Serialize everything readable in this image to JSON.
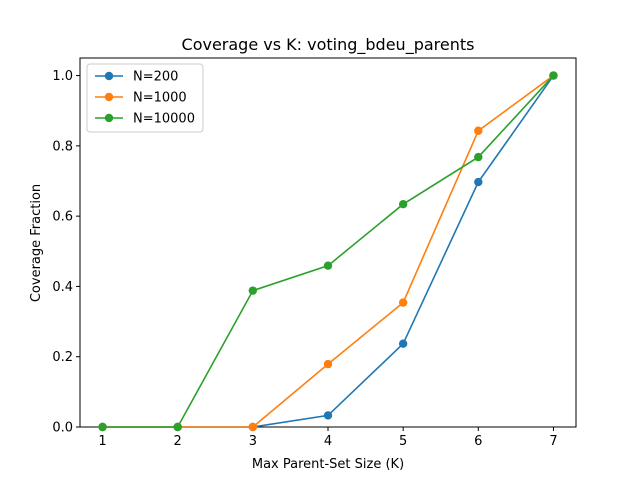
{
  "chart_data": {
    "type": "line",
    "title": "Coverage vs K: voting_bdeu_parents",
    "xlabel": "Max Parent-Set Size (K)",
    "ylabel": "Coverage Fraction",
    "x": [
      1,
      2,
      3,
      4,
      5,
      6,
      7
    ],
    "xlim": [
      0.7,
      7.3
    ],
    "ylim": [
      0.0,
      1.05
    ],
    "xticks": [
      1,
      2,
      3,
      4,
      5,
      6,
      7
    ],
    "yticks": [
      0.0,
      0.2,
      0.4,
      0.6,
      0.8,
      1.0
    ],
    "ytick_labels": [
      "0.0",
      "0.2",
      "0.4",
      "0.6",
      "0.8",
      "1.0"
    ],
    "grid": false,
    "legend_position": "top-left",
    "series": [
      {
        "name": "N=200",
        "color": "#1f77b4",
        "values": [
          0.0,
          0.0,
          0.0,
          0.033,
          0.237,
          0.697,
          1.0
        ]
      },
      {
        "name": "N=1000",
        "color": "#ff7f0e",
        "values": [
          0.0,
          0.0,
          0.0,
          0.179,
          0.354,
          0.843,
          1.0
        ]
      },
      {
        "name": "N=10000",
        "color": "#2ca02c",
        "values": [
          0.0,
          0.0,
          0.388,
          0.459,
          0.634,
          0.768,
          1.0
        ]
      }
    ]
  }
}
